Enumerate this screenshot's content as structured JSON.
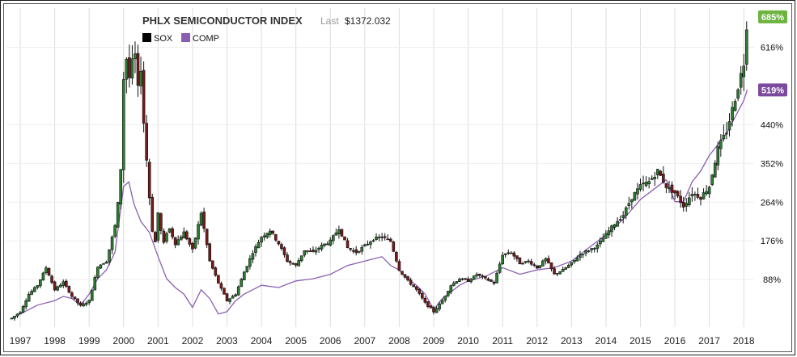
{
  "chart_data": {
    "type": "line",
    "title": "PHLX SEMICONDUCTOR INDEX",
    "last_label": "Last",
    "last_value": "$1372.032",
    "x_ticks": [
      "1997",
      "1998",
      "1999",
      "2000",
      "2001",
      "2002",
      "2003",
      "2004",
      "2005",
      "2006",
      "2007",
      "2008",
      "2009",
      "2010",
      "2011",
      "2012",
      "2013",
      "2014",
      "2015",
      "2016",
      "2017",
      "2018"
    ],
    "y_ticks": [
      {
        "value": 88,
        "label": "88%"
      },
      {
        "value": 176,
        "label": "176%"
      },
      {
        "value": 264,
        "label": "264%"
      },
      {
        "value": 352,
        "label": "352%"
      },
      {
        "value": 440,
        "label": "440%"
      },
      {
        "value": 616,
        "label": "616%"
      }
    ],
    "ylim": [
      -20,
      705
    ],
    "xlim": [
      1996.6,
      2018.3
    ],
    "grid": true,
    "legend_position": "top-left",
    "badges": [
      {
        "label": "685%",
        "value": 685,
        "color": "#6db33f"
      },
      {
        "label": "519%",
        "value": 519,
        "color": "#7b4a9e"
      }
    ],
    "series": [
      {
        "name": "SOX",
        "style": "candlestick",
        "color": "#111111",
        "down_color": "#7a1a1a",
        "x": [
          1996.75,
          1997.0,
          1997.25,
          1997.5,
          1997.75,
          1998.0,
          1998.25,
          1998.5,
          1998.75,
          1999.0,
          1999.25,
          1999.5,
          1999.75,
          1999.9,
          2000.0,
          2000.1,
          2000.2,
          2000.3,
          2000.4,
          2000.5,
          2000.6,
          2000.7,
          2000.8,
          2000.9,
          2001.0,
          2001.15,
          2001.3,
          2001.5,
          2001.75,
          2002.0,
          2002.25,
          2002.5,
          2002.75,
          2003.0,
          2003.25,
          2003.5,
          2003.75,
          2004.0,
          2004.25,
          2004.5,
          2004.75,
          2005.0,
          2005.25,
          2005.5,
          2005.75,
          2006.0,
          2006.25,
          2006.5,
          2006.75,
          2007.0,
          2007.25,
          2007.5,
          2007.75,
          2008.0,
          2008.25,
          2008.5,
          2008.75,
          2009.0,
          2009.25,
          2009.5,
          2009.75,
          2010.0,
          2010.25,
          2010.5,
          2010.75,
          2011.0,
          2011.25,
          2011.5,
          2011.75,
          2012.0,
          2012.25,
          2012.5,
          2012.75,
          2013.0,
          2013.25,
          2013.5,
          2013.75,
          2014.0,
          2014.25,
          2014.5,
          2014.75,
          2015.0,
          2015.25,
          2015.5,
          2015.75,
          2016.0,
          2016.25,
          2016.5,
          2016.75,
          2017.0,
          2017.25,
          2017.5,
          2017.75,
          2018.0,
          2018.1
        ],
        "values": [
          0,
          15,
          55,
          75,
          115,
          65,
          82,
          50,
          28,
          40,
          118,
          130,
          210,
          300,
          545,
          600,
          520,
          640,
          510,
          570,
          420,
          330,
          220,
          160,
          240,
          165,
          210,
          170,
          195,
          155,
          240,
          130,
          80,
          40,
          55,
          105,
          150,
          185,
          200,
          170,
          130,
          120,
          155,
          150,
          165,
          175,
          205,
          160,
          150,
          165,
          180,
          185,
          175,
          110,
          85,
          65,
          35,
          15,
          40,
          75,
          90,
          85,
          100,
          90,
          80,
          145,
          150,
          125,
          130,
          115,
          135,
          100,
          110,
          125,
          145,
          155,
          165,
          190,
          215,
          235,
          275,
          300,
          310,
          335,
          300,
          285,
          255,
          285,
          275,
          300,
          385,
          425,
          500,
          580,
          685
        ]
      },
      {
        "name": "COMP",
        "style": "line",
        "color": "#8b5fb0",
        "x": [
          1996.75,
          1997.0,
          1997.5,
          1998.0,
          1998.25,
          1998.5,
          1998.75,
          1999.0,
          1999.25,
          1999.5,
          1999.75,
          2000.0,
          2000.15,
          2000.3,
          2000.5,
          2000.75,
          2001.0,
          2001.25,
          2001.5,
          2001.75,
          2002.0,
          2002.25,
          2002.5,
          2002.75,
          2003.0,
          2003.25,
          2003.5,
          2003.75,
          2004.0,
          2004.5,
          2005.0,
          2005.5,
          2006.0,
          2006.5,
          2007.0,
          2007.5,
          2007.75,
          2008.0,
          2008.25,
          2008.5,
          2008.75,
          2009.0,
          2009.25,
          2009.5,
          2009.75,
          2010.0,
          2010.5,
          2011.0,
          2011.5,
          2011.75,
          2012.0,
          2012.5,
          2013.0,
          2013.5,
          2014.0,
          2014.5,
          2015.0,
          2015.5,
          2015.75,
          2016.0,
          2016.25,
          2016.5,
          2016.75,
          2017.0,
          2017.5,
          2018.0,
          2018.1
        ],
        "values": [
          0,
          10,
          30,
          40,
          50,
          45,
          30,
          55,
          90,
          110,
          150,
          300,
          310,
          260,
          220,
          195,
          140,
          90,
          70,
          55,
          25,
          65,
          45,
          10,
          15,
          40,
          55,
          65,
          75,
          70,
          85,
          90,
          100,
          120,
          130,
          140,
          120,
          110,
          90,
          75,
          55,
          20,
          45,
          60,
          75,
          85,
          95,
          115,
          100,
          105,
          110,
          115,
          130,
          160,
          190,
          225,
          270,
          300,
          315,
          265,
          265,
          310,
          335,
          370,
          420,
          495,
          519
        ]
      }
    ]
  }
}
